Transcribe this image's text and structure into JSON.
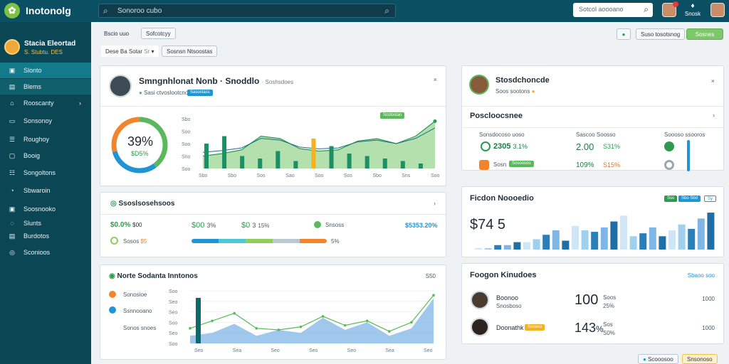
{
  "app": {
    "title": "Inotonolg",
    "logo_glyph": "✿"
  },
  "top": {
    "search_placeholder": "Sonoroo cubo",
    "right_search_placeholder": "Sotcol aoooano",
    "notify_label": "Snosk"
  },
  "profile": {
    "name": "Stacia Eleortad",
    "subtitle": "S. Stubtu. DES"
  },
  "sidebar": {
    "items": [
      {
        "icon": "▣",
        "label": "Slonto"
      },
      {
        "icon": "▤",
        "label": "Blems"
      },
      {
        "icon": "⌂",
        "label": "Rooscanty",
        "chev": "›"
      },
      {
        "icon": "▭",
        "label": "Sonsonoy"
      },
      {
        "icon": "☰",
        "label": "Roughoy"
      },
      {
        "icon": "▢",
        "label": "Booig"
      },
      {
        "icon": "☷",
        "label": "Songoltons"
      },
      {
        "icon": "◔",
        "label": "Sbwaroin"
      },
      {
        "icon": "▣",
        "label": "Soosnooko"
      },
      {
        "icon": "◌",
        "label": "Slunts"
      },
      {
        "icon": "▤",
        "label": "Burdotos"
      },
      {
        "icon": "◎",
        "label": "Sconioos"
      }
    ]
  },
  "toolbar": {
    "btn1": "Bscio uuo",
    "btn2": "Sofcotcyy",
    "btn3": "Dese Ba Sotar",
    "btn3_tag": "Sr",
    "btn4": "Sosnsn Ntsoostas",
    "right_btn1": "Suso tosotsnog",
    "right_btn2": "Sosnes"
  },
  "card_main": {
    "title": "Smngnhlonat Nonb · Snoddlo",
    "title_tail": "· Soshsdoes",
    "sub": "Sasi ctvoslootcnog",
    "chip": "Sasostass",
    "donut_pct": "39%",
    "donut_sub": "$D5%",
    "y_ticks": [
      "Sbo",
      "Soo",
      "Soo",
      "Sno",
      "Soo"
    ],
    "x_ticks": [
      "Sbo",
      "Sbo",
      "Sos",
      "Sao",
      "Soo",
      "Sos",
      "Sbo",
      "Sns",
      "Soo"
    ],
    "legend": "Scolostan",
    "chart_data": {
      "type": "bar",
      "title": "",
      "categories": [
        "1",
        "2",
        "3",
        "4",
        "5",
        "6",
        "7",
        "8",
        "9",
        "10",
        "11",
        "12",
        "13"
      ],
      "series": [
        {
          "values": [
            20,
            26,
            10,
            8,
            14,
            6,
            24,
            18,
            12,
            10,
            8,
            6,
            4
          ]
        }
      ],
      "area": [
        10,
        12,
        15,
        26,
        24,
        16,
        14,
        15,
        22,
        24,
        20,
        26,
        38
      ],
      "colors": {
        "bar": "#1d8f64",
        "area": "#a7dba0",
        "highlight": "#f6b020"
      }
    }
  },
  "card_profile": {
    "title": "Stosdchoncde",
    "sub": "Soos sootons",
    "section": "Poscloocsnee",
    "labels": [
      "Sonsdocoso uoso",
      "Sascoo Soosso",
      "Soooso ssooros"
    ],
    "row1": [
      "2305",
      "3.1%",
      "2.00",
      "S31%"
    ],
    "row2": [
      "Sosn",
      "Sosoosoo",
      "109%",
      "S15%"
    ]
  },
  "card_kpi": {
    "title": "Ssoslsosehsoos",
    "values": [
      "$0.0%",
      "$00",
      "3%",
      "$0",
      "3",
      "15%",
      "Snsoss",
      "$5353.20%"
    ],
    "sub_label": "Sosos",
    "sub_value": "$5",
    "bar_pct": "5%",
    "bar_colors": [
      "#1f95d6",
      "#4cc9d4",
      "#8fce57",
      "#b9c9d2",
      "#f2852c"
    ]
  },
  "card_right_bars": {
    "title": "Ficdon Noooedio",
    "value": "$74 5",
    "tags": [
      "Sso",
      "Sbo Sbd",
      "Sy"
    ],
    "chart_data": {
      "type": "bar",
      "title": "",
      "categories": [
        "1",
        "2",
        "3",
        "4",
        "5",
        "6",
        "7",
        "8",
        "9",
        "10",
        "11",
        "12",
        "13",
        "14",
        "15",
        "16",
        "17",
        "18",
        "19",
        "20",
        "21",
        "22",
        "23",
        "24",
        "25"
      ],
      "series": [
        {
          "values": [
            2,
            2,
            6,
            6,
            10,
            10,
            14,
            20,
            26,
            12,
            32,
            26,
            24,
            30,
            38,
            46,
            18,
            22,
            30,
            18,
            26,
            34,
            28,
            42,
            50
          ]
        }
      ]
    }
  },
  "card_bottom_chart": {
    "title": "Norte Sodanta Inntonos",
    "right_val": "S50",
    "legend": [
      {
        "label": "Sonosioe",
        "color": "#f2852c"
      },
      {
        "label": "Ssnnooano",
        "color": "#1f95d6"
      },
      {
        "label": "Sonos snoes"
      }
    ],
    "y_ticks": [
      "Soo",
      "Seo",
      "Seo",
      "Soo",
      "Seo",
      "Soo"
    ],
    "x_ticks": [
      "Seo",
      "Sea",
      "Seo",
      "Seo",
      "Seo",
      "Sea",
      "Seo"
    ],
    "chart_data": {
      "type": "area",
      "title": "",
      "x": [
        1,
        2,
        3,
        4,
        5,
        6,
        7,
        8,
        9,
        10,
        11,
        12
      ],
      "series": [
        {
          "values": [
            10,
            14,
            26,
            10,
            18,
            14,
            34,
            18,
            28,
            10,
            20,
            60
          ]
        },
        {
          "values": [
            20,
            30,
            40,
            20,
            18,
            22,
            36,
            24,
            30,
            16,
            28,
            64
          ]
        }
      ],
      "colors": {
        "area": "#7fb6e6",
        "line": "#5cb85c",
        "bar": "#0b6b6a"
      }
    }
  },
  "card_people": {
    "title": "Foogon Kinudoes",
    "right_label": "Sbaoo soo",
    "rows": [
      {
        "name": "Boonoo",
        "sub": "Snosboso",
        "big": "100",
        "s1": "Soos",
        "s2": "25%",
        "right": "1000"
      },
      {
        "name": "Doonathk",
        "chip": "Soooso",
        "big": "143",
        "big_suffix": "%",
        "s1": "Sos",
        "s2": "S0%",
        "right": "1000"
      }
    ]
  },
  "footer": {
    "btn1": "Scooosoo",
    "btn2": "Snsonoso"
  }
}
